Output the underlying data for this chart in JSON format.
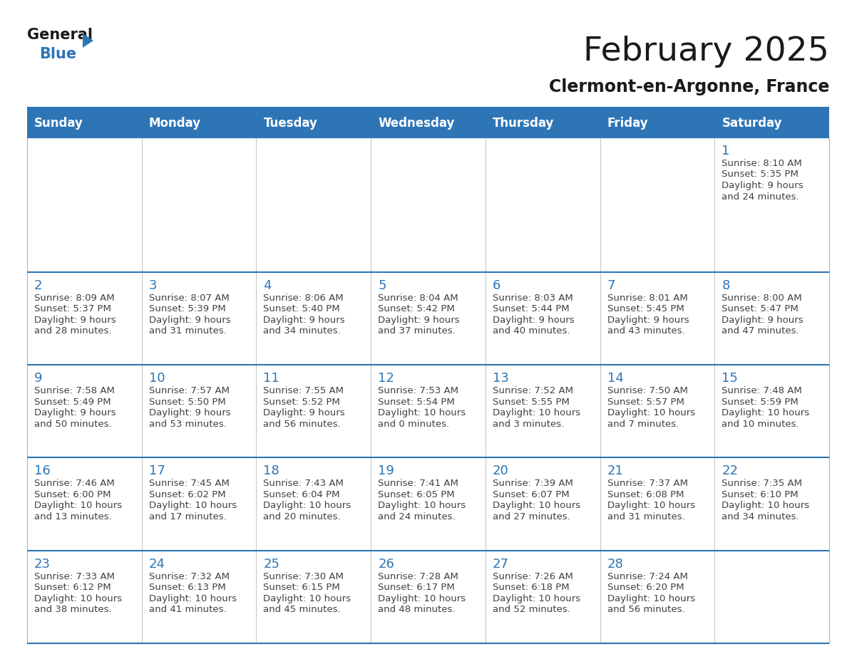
{
  "title": "February 2025",
  "subtitle": "Clermont-en-Argonne, France",
  "days_of_week": [
    "Sunday",
    "Monday",
    "Tuesday",
    "Wednesday",
    "Thursday",
    "Friday",
    "Saturday"
  ],
  "header_bg": "#2E75B6",
  "header_text": "#FFFFFF",
  "cell_bg": "#FFFFFF",
  "separator_color": "#2E75B6",
  "day_number_color": "#2E75B6",
  "text_color": "#404040",
  "logo_black": "#1a1a1a",
  "logo_blue": "#2E75B6",
  "calendar_data": [
    [
      null,
      null,
      null,
      null,
      null,
      null,
      {
        "day": 1,
        "sunrise": "8:10 AM",
        "sunset": "5:35 PM",
        "daylight": "9 hours\nand 24 minutes."
      }
    ],
    [
      {
        "day": 2,
        "sunrise": "8:09 AM",
        "sunset": "5:37 PM",
        "daylight": "9 hours\nand 28 minutes."
      },
      {
        "day": 3,
        "sunrise": "8:07 AM",
        "sunset": "5:39 PM",
        "daylight": "9 hours\nand 31 minutes."
      },
      {
        "day": 4,
        "sunrise": "8:06 AM",
        "sunset": "5:40 PM",
        "daylight": "9 hours\nand 34 minutes."
      },
      {
        "day": 5,
        "sunrise": "8:04 AM",
        "sunset": "5:42 PM",
        "daylight": "9 hours\nand 37 minutes."
      },
      {
        "day": 6,
        "sunrise": "8:03 AM",
        "sunset": "5:44 PM",
        "daylight": "9 hours\nand 40 minutes."
      },
      {
        "day": 7,
        "sunrise": "8:01 AM",
        "sunset": "5:45 PM",
        "daylight": "9 hours\nand 43 minutes."
      },
      {
        "day": 8,
        "sunrise": "8:00 AM",
        "sunset": "5:47 PM",
        "daylight": "9 hours\nand 47 minutes."
      }
    ],
    [
      {
        "day": 9,
        "sunrise": "7:58 AM",
        "sunset": "5:49 PM",
        "daylight": "9 hours\nand 50 minutes."
      },
      {
        "day": 10,
        "sunrise": "7:57 AM",
        "sunset": "5:50 PM",
        "daylight": "9 hours\nand 53 minutes."
      },
      {
        "day": 11,
        "sunrise": "7:55 AM",
        "sunset": "5:52 PM",
        "daylight": "9 hours\nand 56 minutes."
      },
      {
        "day": 12,
        "sunrise": "7:53 AM",
        "sunset": "5:54 PM",
        "daylight": "10 hours\nand 0 minutes."
      },
      {
        "day": 13,
        "sunrise": "7:52 AM",
        "sunset": "5:55 PM",
        "daylight": "10 hours\nand 3 minutes."
      },
      {
        "day": 14,
        "sunrise": "7:50 AM",
        "sunset": "5:57 PM",
        "daylight": "10 hours\nand 7 minutes."
      },
      {
        "day": 15,
        "sunrise": "7:48 AM",
        "sunset": "5:59 PM",
        "daylight": "10 hours\nand 10 minutes."
      }
    ],
    [
      {
        "day": 16,
        "sunrise": "7:46 AM",
        "sunset": "6:00 PM",
        "daylight": "10 hours\nand 13 minutes."
      },
      {
        "day": 17,
        "sunrise": "7:45 AM",
        "sunset": "6:02 PM",
        "daylight": "10 hours\nand 17 minutes."
      },
      {
        "day": 18,
        "sunrise": "7:43 AM",
        "sunset": "6:04 PM",
        "daylight": "10 hours\nand 20 minutes."
      },
      {
        "day": 19,
        "sunrise": "7:41 AM",
        "sunset": "6:05 PM",
        "daylight": "10 hours\nand 24 minutes."
      },
      {
        "day": 20,
        "sunrise": "7:39 AM",
        "sunset": "6:07 PM",
        "daylight": "10 hours\nand 27 minutes."
      },
      {
        "day": 21,
        "sunrise": "7:37 AM",
        "sunset": "6:08 PM",
        "daylight": "10 hours\nand 31 minutes."
      },
      {
        "day": 22,
        "sunrise": "7:35 AM",
        "sunset": "6:10 PM",
        "daylight": "10 hours\nand 34 minutes."
      }
    ],
    [
      {
        "day": 23,
        "sunrise": "7:33 AM",
        "sunset": "6:12 PM",
        "daylight": "10 hours\nand 38 minutes."
      },
      {
        "day": 24,
        "sunrise": "7:32 AM",
        "sunset": "6:13 PM",
        "daylight": "10 hours\nand 41 minutes."
      },
      {
        "day": 25,
        "sunrise": "7:30 AM",
        "sunset": "6:15 PM",
        "daylight": "10 hours\nand 45 minutes."
      },
      {
        "day": 26,
        "sunrise": "7:28 AM",
        "sunset": "6:17 PM",
        "daylight": "10 hours\nand 48 minutes."
      },
      {
        "day": 27,
        "sunrise": "7:26 AM",
        "sunset": "6:18 PM",
        "daylight": "10 hours\nand 52 minutes."
      },
      {
        "day": 28,
        "sunrise": "7:24 AM",
        "sunset": "6:20 PM",
        "daylight": "10 hours\nand 56 minutes."
      },
      null
    ]
  ]
}
